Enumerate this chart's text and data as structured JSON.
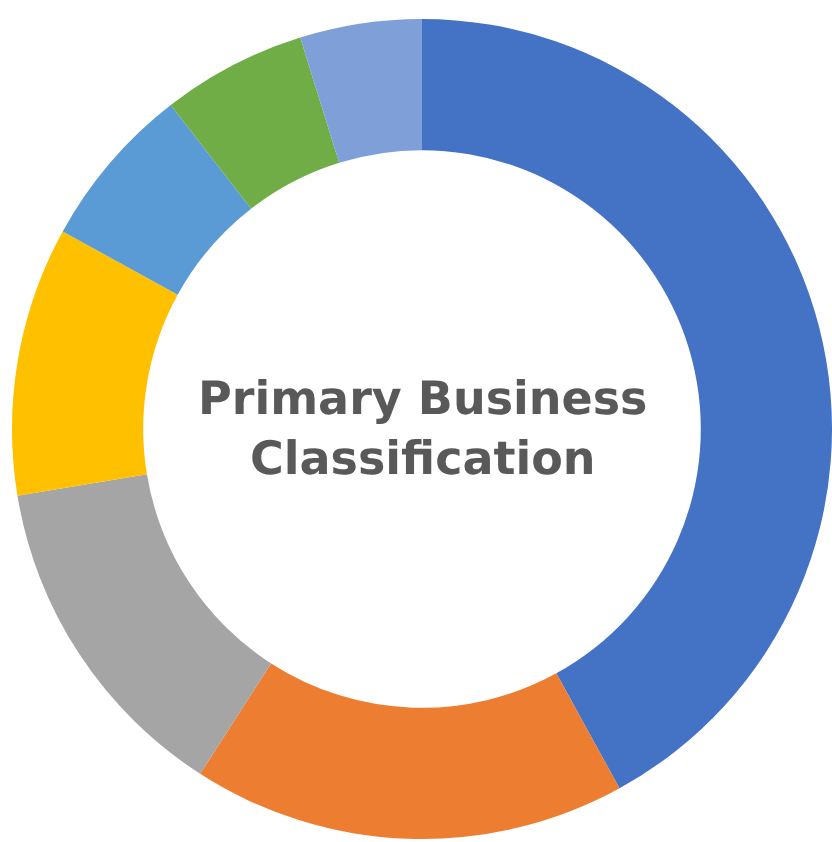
{
  "chart_data": {
    "type": "donut",
    "title": "Primary Business Classification",
    "categories": [
      null,
      null,
      null,
      null,
      null,
      null,
      null
    ],
    "values": [
      42,
      17.1,
      13.3,
      10.6,
      6.5,
      5.7,
      4.8
    ],
    "colors": [
      "#4472c4",
      "#ed7d31",
      "#a5a5a5",
      "#ffc000",
      "#5b9bd5",
      "#70ad47",
      "#7f9fd8"
    ],
    "legend": false
  }
}
